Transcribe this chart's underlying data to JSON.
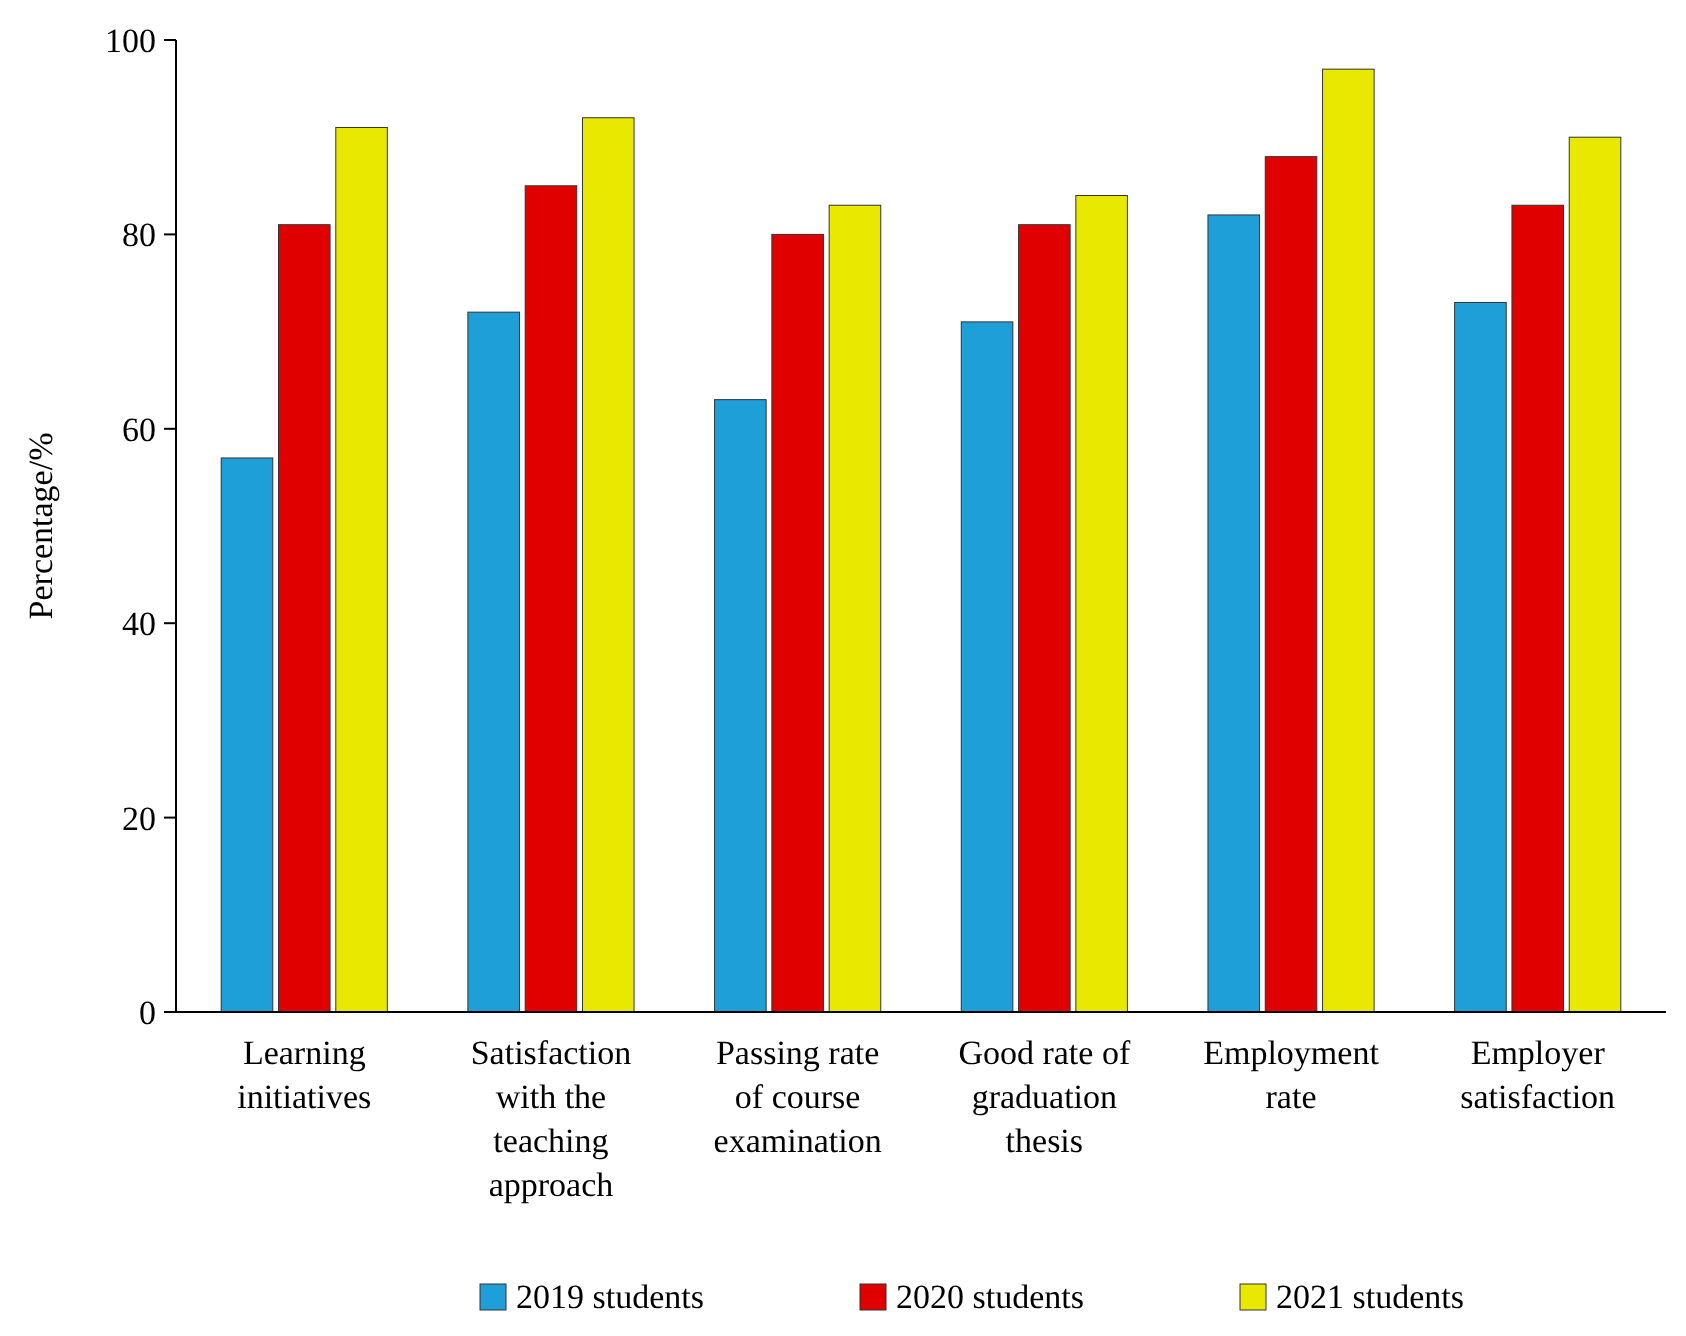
{
  "chart_data": {
    "type": "bar",
    "ylabel": "Percentage/%",
    "categories": [
      "Learning initiatives",
      "Satisfaction with the teaching approach",
      "Passing rate of course examination",
      "Good rate of graduation thesis",
      "Employment rate",
      "Employer satisfaction"
    ],
    "series": [
      {
        "name": "2019 students",
        "color": "#1e9fd8",
        "values": [
          57,
          72,
          63,
          71,
          82,
          73
        ]
      },
      {
        "name": "2020 students",
        "color": "#e00000",
        "values": [
          81,
          85,
          80,
          81,
          88,
          83
        ]
      },
      {
        "name": "2021 students",
        "color": "#e8e800",
        "values": [
          91,
          92,
          83,
          84,
          97,
          90
        ]
      }
    ],
    "ylim": [
      0,
      100
    ],
    "yticks": [
      0,
      20,
      40,
      60,
      80,
      100
    ],
    "grid": false,
    "legend": "bottom"
  }
}
